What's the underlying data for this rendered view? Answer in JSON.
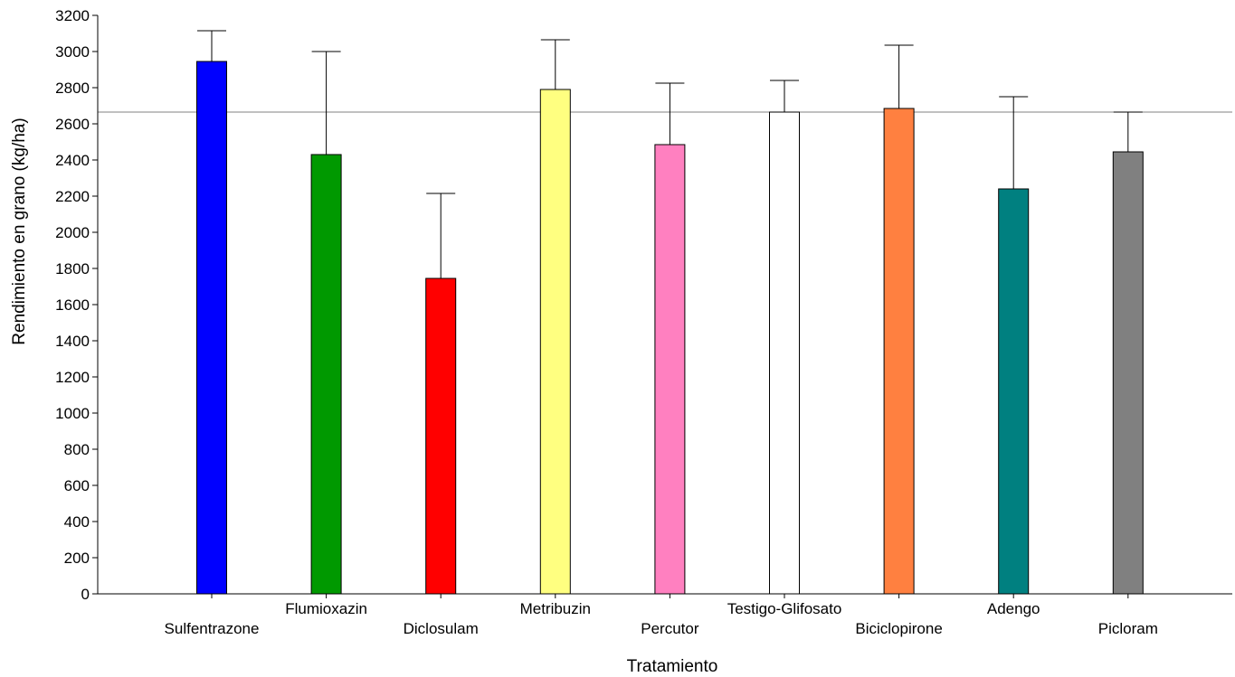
{
  "chart_data": {
    "type": "bar",
    "title": "",
    "xlabel": "Tratamiento",
    "ylabel": "Rendimiento en grano (kg/ha)",
    "ylim": [
      0,
      3200
    ],
    "yticks": [
      0,
      200,
      400,
      600,
      800,
      1000,
      1200,
      1400,
      1600,
      1800,
      2000,
      2200,
      2400,
      2600,
      2800,
      3000,
      3200
    ],
    "grid": false,
    "reference_line": 2665,
    "categories": [
      "Sulfentrazone",
      "Flumioxazin",
      "Diclosulam",
      "Metribuzin",
      "Percutor",
      "Testigo-Glifosato",
      "Biciclopirone",
      "Adengo",
      "Picloram"
    ],
    "values": [
      2945,
      2430,
      1745,
      2790,
      2485,
      2665,
      2685,
      2240,
      2445
    ],
    "error_upper": [
      3115,
      3000,
      2215,
      3065,
      2825,
      2840,
      3035,
      2750,
      2665
    ],
    "colors": [
      "#0000FF",
      "#009900",
      "#FF0000",
      "#FFFF80",
      "#FF80C0",
      "#FFFFFF",
      "#FF8040",
      "#008080",
      "#808080"
    ]
  }
}
